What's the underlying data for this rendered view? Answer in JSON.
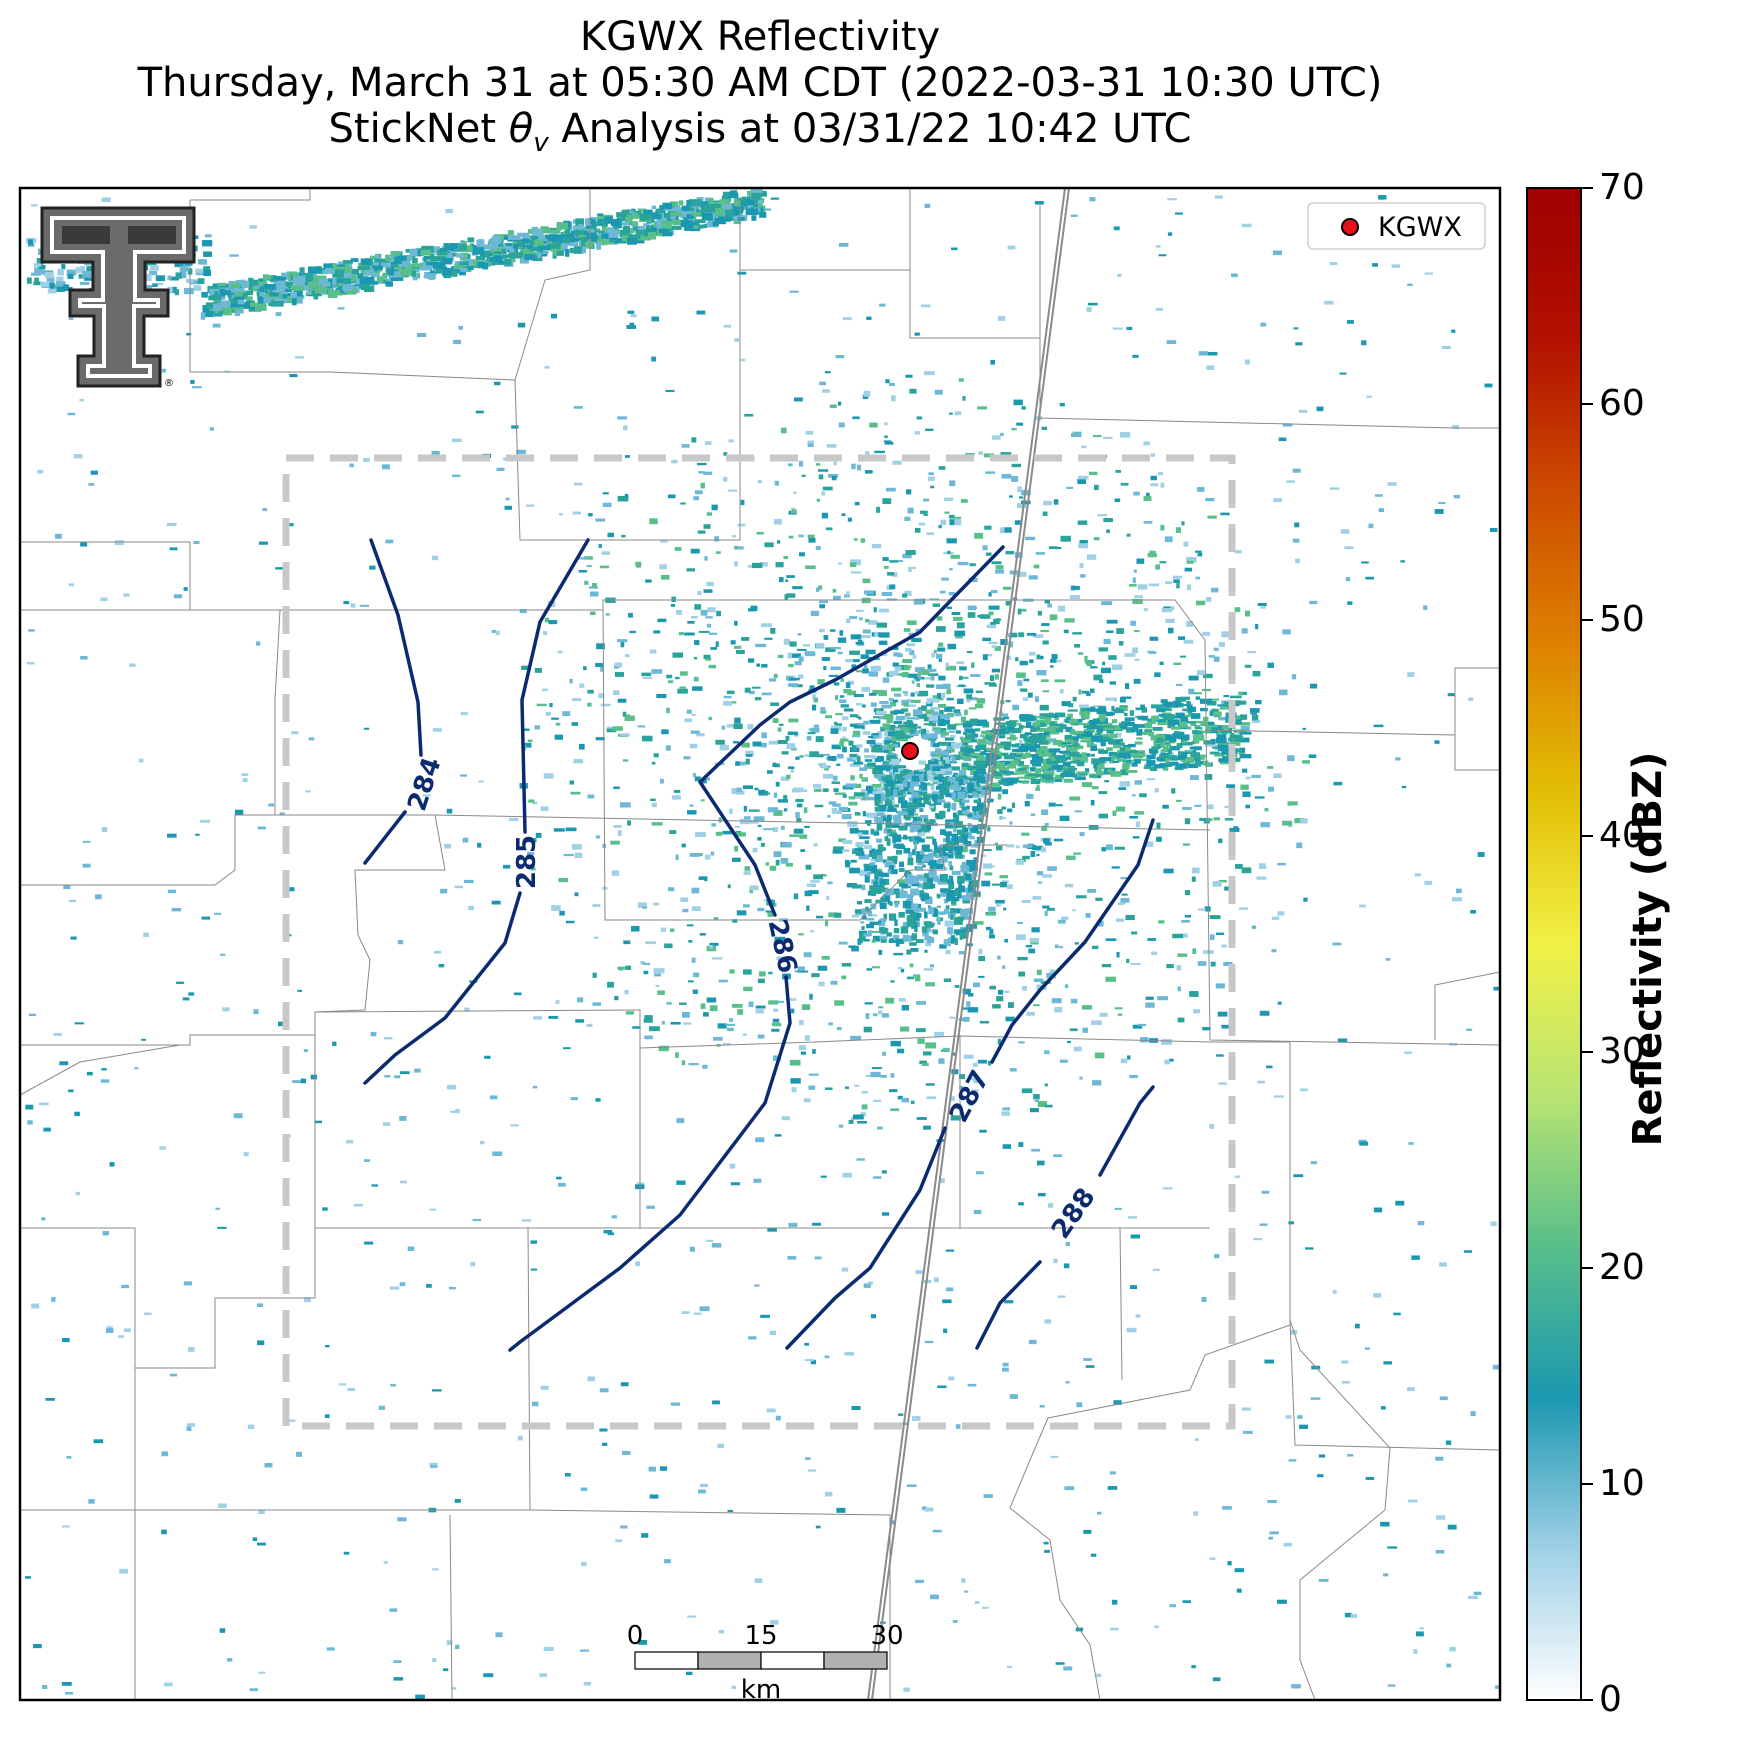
{
  "title": {
    "line1": "KGWX Reflectivity",
    "line2": "Thursday, March 31 at 05:30 AM CDT (2022-03-31 10:30 UTC)",
    "line3_prefix": "StickNet ",
    "line3_symbol": "θ",
    "line3_subscript": "v",
    "line3_suffix": " Analysis at 03/31/22 10:42 UTC"
  },
  "legend": {
    "label": "KGWX",
    "marker_color": "#e8101a"
  },
  "colorbar": {
    "label": "Reflectivity (dBZ)",
    "min": 0,
    "max": 70,
    "ticks": [
      "0",
      "10",
      "20",
      "30",
      "40",
      "50",
      "60",
      "70"
    ],
    "colors": [
      "#ffffff",
      "#9fd0e6",
      "#1b98b0",
      "#58bf8a",
      "#b9e472",
      "#f1f146",
      "#e2be05",
      "#dd8000",
      "#cd4b00",
      "#b21000",
      "#a00000"
    ]
  },
  "scale_bar": {
    "ticks": [
      "0",
      "15",
      "30"
    ],
    "unit": "km"
  },
  "contours": {
    "color": "#0b2a6f",
    "levels": [
      "284",
      "285",
      "286",
      "287",
      "288"
    ]
  },
  "logo": {
    "name": "Texas Tech Double T",
    "mark": "®"
  }
}
